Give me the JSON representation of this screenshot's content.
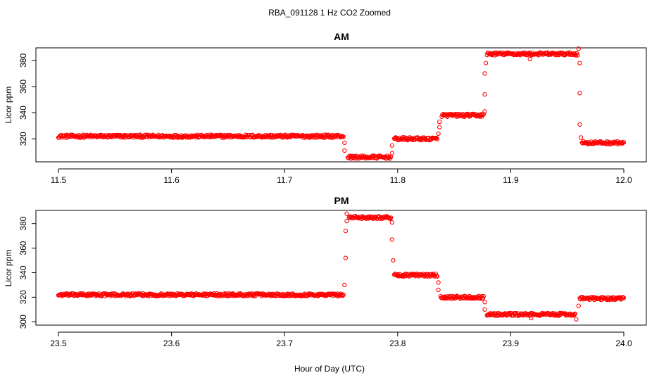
{
  "figure": {
    "title": "RBA_091128  1 Hz CO2 Zoomed",
    "xlabel": "Hour of Day (UTC)"
  },
  "colors": {
    "points": "#ff0000",
    "axis": "#000000",
    "background": "#ffffff"
  },
  "chart_data": [
    {
      "type": "scatter",
      "title": "AM",
      "xlabel": "",
      "ylabel": "Licor ppm",
      "xlim": [
        11.5,
        12.0
      ],
      "ylim": [
        304,
        388
      ],
      "xticks": [
        "11.5",
        "11.6",
        "11.7",
        "11.8",
        "11.9",
        "12.0"
      ],
      "yticks": [
        "320",
        "340",
        "360",
        "380"
      ],
      "grid": false,
      "marker": "open-circle",
      "series": [
        {
          "segments": [
            {
              "x": [
                11.5,
                11.752
              ],
              "y": 322
            },
            {
              "x": [
                11.756,
                11.794
              ],
              "y": 306
            },
            {
              "x": [
                11.797,
                11.835
              ],
              "y": 320
            },
            {
              "x": [
                11.839,
                11.876
              ],
              "y": 338
            },
            {
              "x": [
                11.879,
                11.959
              ],
              "y": 385
            },
            {
              "x": [
                11.963,
                12.0
              ],
              "y": 317
            }
          ],
          "transition_points": [
            {
              "x": 11.753,
              "y": 317
            },
            {
              "x": 11.753,
              "y": 311
            },
            {
              "x": 11.795,
              "y": 309
            },
            {
              "x": 11.795,
              "y": 315
            },
            {
              "x": 11.836,
              "y": 324
            },
            {
              "x": 11.837,
              "y": 329
            },
            {
              "x": 11.837,
              "y": 333
            },
            {
              "x": 11.877,
              "y": 341
            },
            {
              "x": 11.877,
              "y": 354
            },
            {
              "x": 11.877,
              "y": 370
            },
            {
              "x": 11.878,
              "y": 378
            },
            {
              "x": 11.917,
              "y": 381
            },
            {
              "x": 11.96,
              "y": 389
            },
            {
              "x": 11.961,
              "y": 378
            },
            {
              "x": 11.961,
              "y": 355
            },
            {
              "x": 11.961,
              "y": 331
            },
            {
              "x": 11.962,
              "y": 321
            }
          ]
        }
      ]
    },
    {
      "type": "scatter",
      "title": "PM",
      "xlabel": "",
      "ylabel": "Licor ppm",
      "xlim": [
        23.5,
        24.0
      ],
      "ylim": [
        299,
        389
      ],
      "xticks": [
        "23.5",
        "23.6",
        "23.7",
        "23.8",
        "23.9",
        "24.0"
      ],
      "yticks": [
        "300",
        "320",
        "340",
        "360",
        "380"
      ],
      "grid": false,
      "marker": "open-circle",
      "series": [
        {
          "segments": [
            {
              "x": [
                23.5,
                23.752
              ],
              "y": 322
            },
            {
              "x": [
                23.757,
                23.794
              ],
              "y": 385
            },
            {
              "x": [
                23.797,
                23.835
              ],
              "y": 338
            },
            {
              "x": [
                23.838,
                23.876
              ],
              "y": 320
            },
            {
              "x": [
                23.879,
                23.957
              ],
              "y": 306
            },
            {
              "x": [
                23.961,
                24.0
              ],
              "y": 319
            }
          ],
          "transition_points": [
            {
              "x": 23.753,
              "y": 330
            },
            {
              "x": 23.754,
              "y": 352
            },
            {
              "x": 23.754,
              "y": 374
            },
            {
              "x": 23.755,
              "y": 382
            },
            {
              "x": 23.755,
              "y": 388
            },
            {
              "x": 23.795,
              "y": 381
            },
            {
              "x": 23.795,
              "y": 367
            },
            {
              "x": 23.796,
              "y": 350
            },
            {
              "x": 23.836,
              "y": 332
            },
            {
              "x": 23.836,
              "y": 326
            },
            {
              "x": 23.877,
              "y": 316
            },
            {
              "x": 23.877,
              "y": 310
            },
            {
              "x": 23.918,
              "y": 303
            },
            {
              "x": 23.958,
              "y": 302
            },
            {
              "x": 23.96,
              "y": 313
            }
          ]
        }
      ]
    }
  ]
}
